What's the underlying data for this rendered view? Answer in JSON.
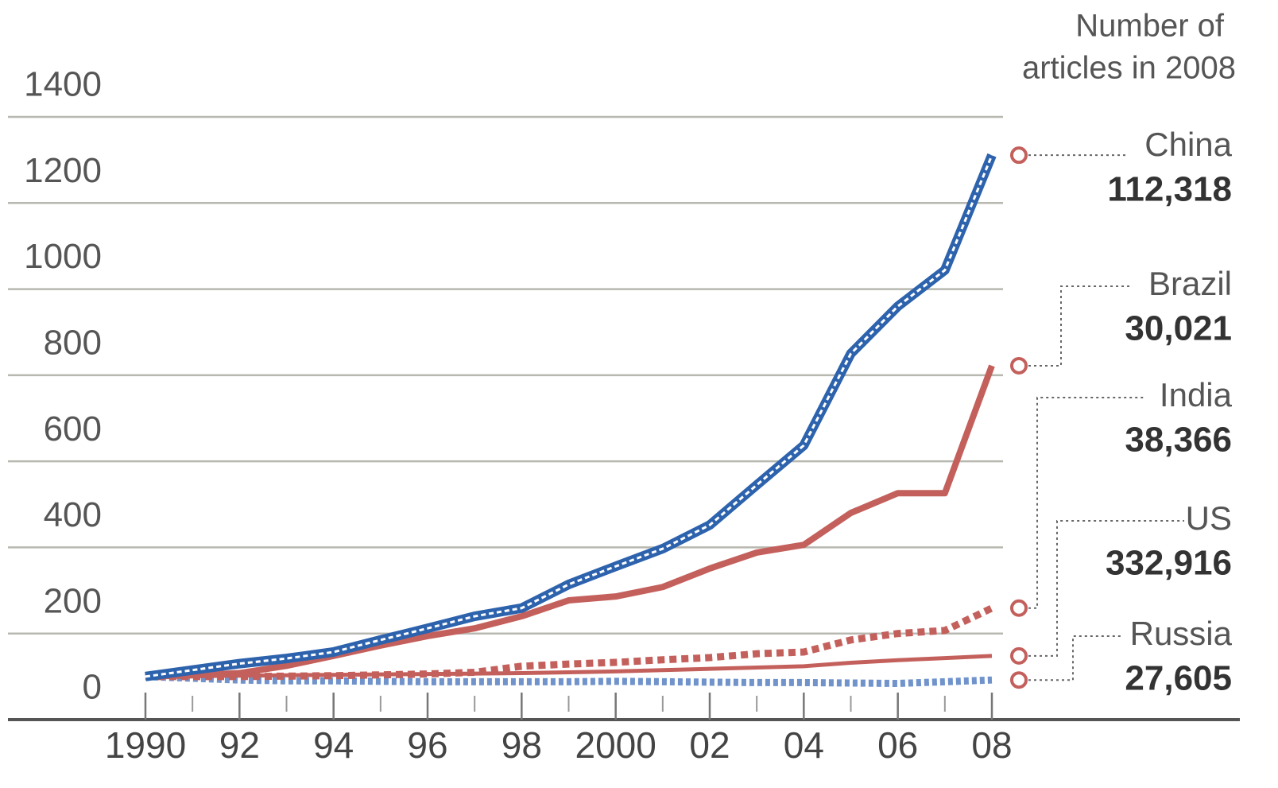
{
  "chart_data": {
    "type": "line",
    "title": "Number of articles in 2008",
    "title_lines": [
      "Number of",
      "articles in 2008"
    ],
    "x": [
      1990,
      1991,
      1992,
      1993,
      1994,
      1995,
      1996,
      1997,
      1998,
      1999,
      2000,
      2001,
      2002,
      2003,
      2004,
      2005,
      2006,
      2007,
      2008
    ],
    "xlim": [
      1990,
      2008
    ],
    "xticks": [
      {
        "value": 1990,
        "label": "1990"
      },
      {
        "value": 1992,
        "label": "92"
      },
      {
        "value": 1994,
        "label": "94"
      },
      {
        "value": 1996,
        "label": "96"
      },
      {
        "value": 1998,
        "label": "98"
      },
      {
        "value": 2000,
        "label": "2000"
      },
      {
        "value": 2002,
        "label": "02"
      },
      {
        "value": 2004,
        "label": "04"
      },
      {
        "value": 2006,
        "label": "06"
      },
      {
        "value": 2008,
        "label": "08"
      }
    ],
    "ylim": [
      0,
      1400
    ],
    "yticks": [
      0,
      200,
      400,
      600,
      800,
      1000,
      1200,
      1400
    ],
    "grid": true,
    "series": [
      {
        "name": "China",
        "color": "#2d62ad",
        "style": "double",
        "articles_2008": "112,318",
        "values": [
          100,
          115,
          130,
          142,
          157,
          185,
          212,
          240,
          259,
          314,
          356,
          397,
          452,
          545,
          637,
          850,
          960,
          1044,
          1311
        ]
      },
      {
        "name": "Brazil",
        "color": "#c4605c",
        "style": "solid",
        "articles_2008": "30,021",
        "values": [
          100,
          103,
          108,
          125,
          148,
          172,
          194,
          212,
          240,
          277,
          286,
          308,
          351,
          388,
          406,
          480,
          526,
          526,
          822
        ]
      },
      {
        "name": "India",
        "color": "#c4605c",
        "style": "dashed",
        "articles_2008": "38,366",
        "values": [
          100,
          100,
          100,
          101,
          102,
          104,
          106,
          110,
          124,
          129,
          133,
          139,
          144,
          153,
          157,
          185,
          200,
          207,
          259
        ]
      },
      {
        "name": "US",
        "color": "#c4605c",
        "style": "thin",
        "articles_2008": "332,916",
        "values": [
          100,
          101,
          102,
          103,
          104,
          105,
          106,
          107,
          108,
          110,
          112,
          115,
          118,
          121,
          124,
          132,
          138,
          143,
          148
        ]
      },
      {
        "name": "Russia",
        "color": "#7093cc",
        "style": "dotted",
        "articles_2008": "27,605",
        "values": [
          100,
          96,
          92,
          90,
          90,
          89,
          88,
          88,
          88,
          88,
          89,
          88,
          87,
          86,
          86,
          85,
          84,
          88,
          92
        ]
      }
    ]
  }
}
